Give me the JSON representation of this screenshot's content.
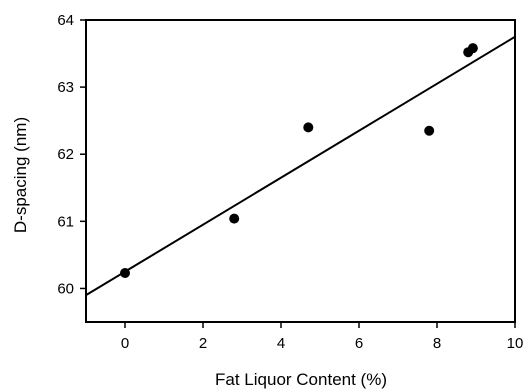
{
  "chart_data": {
    "type": "scatter",
    "title": "",
    "xlabel": "Fat Liquor Content (%)",
    "ylabel": "D-spacing (nm)",
    "xlim": [
      -1,
      10
    ],
    "ylim": [
      59.5,
      64
    ],
    "xticks": [
      0,
      2,
      4,
      6,
      8,
      10
    ],
    "yticks": [
      60,
      61,
      62,
      63,
      64
    ],
    "grid": false,
    "legend": "none",
    "colors": {
      "points": "#000000",
      "line": "#000000",
      "axes": "#000000"
    },
    "series": [
      {
        "points": [
          {
            "x": 0.0,
            "y": 60.23
          },
          {
            "x": 2.8,
            "y": 61.04
          },
          {
            "x": 4.7,
            "y": 62.4
          },
          {
            "x": 7.8,
            "y": 62.35
          },
          {
            "x": 8.8,
            "y": 63.52
          },
          {
            "x": 8.92,
            "y": 63.58
          }
        ]
      }
    ],
    "fit_line": {
      "type": "linear",
      "x": [
        -1,
        10
      ],
      "y": [
        59.9,
        63.75
      ]
    }
  }
}
